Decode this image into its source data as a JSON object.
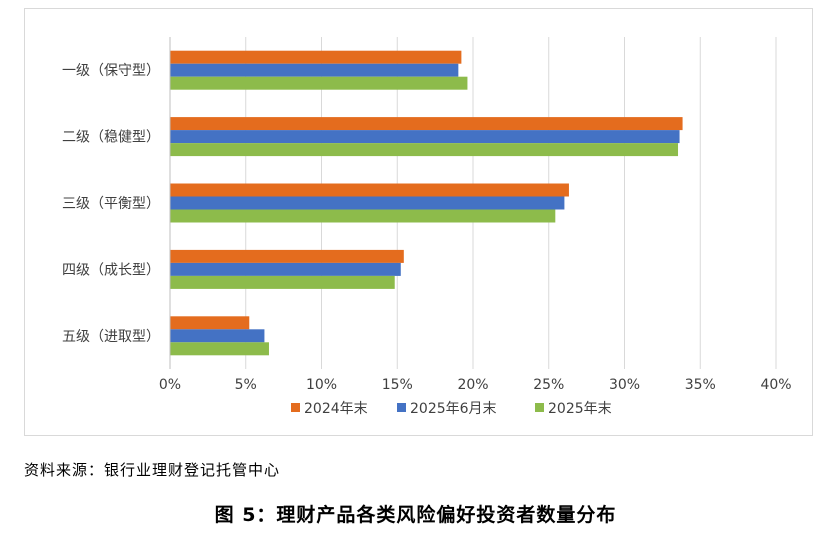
{
  "chart_data": {
    "type": "bar",
    "orientation": "horizontal",
    "categories": [
      "一级（保守型）",
      "二级（稳健型）",
      "三级（平衡型）",
      "四级（成长型）",
      "五级（进取型）"
    ],
    "series": [
      {
        "name": "2024年末",
        "color": "#E46C1E",
        "values": [
          19.2,
          33.8,
          26.3,
          15.4,
          5.2
        ]
      },
      {
        "name": "2025年6月末",
        "color": "#4472C4",
        "values": [
          19.0,
          33.6,
          26.0,
          15.2,
          6.2
        ]
      },
      {
        "name": "2025年末",
        "color": "#8DBB4B",
        "values": [
          19.6,
          33.5,
          25.4,
          14.8,
          6.5
        ]
      }
    ],
    "xlim": [
      0,
      40
    ],
    "xticks": [
      "0%",
      "5%",
      "10%",
      "15%",
      "20%",
      "25%",
      "30%",
      "35%",
      "40%"
    ],
    "grid": true,
    "legend_position": "bottom"
  },
  "source": "资料来源：银行业理财登记托管中心",
  "caption": "图 5：理财产品各类风险偏好投资者数量分布"
}
